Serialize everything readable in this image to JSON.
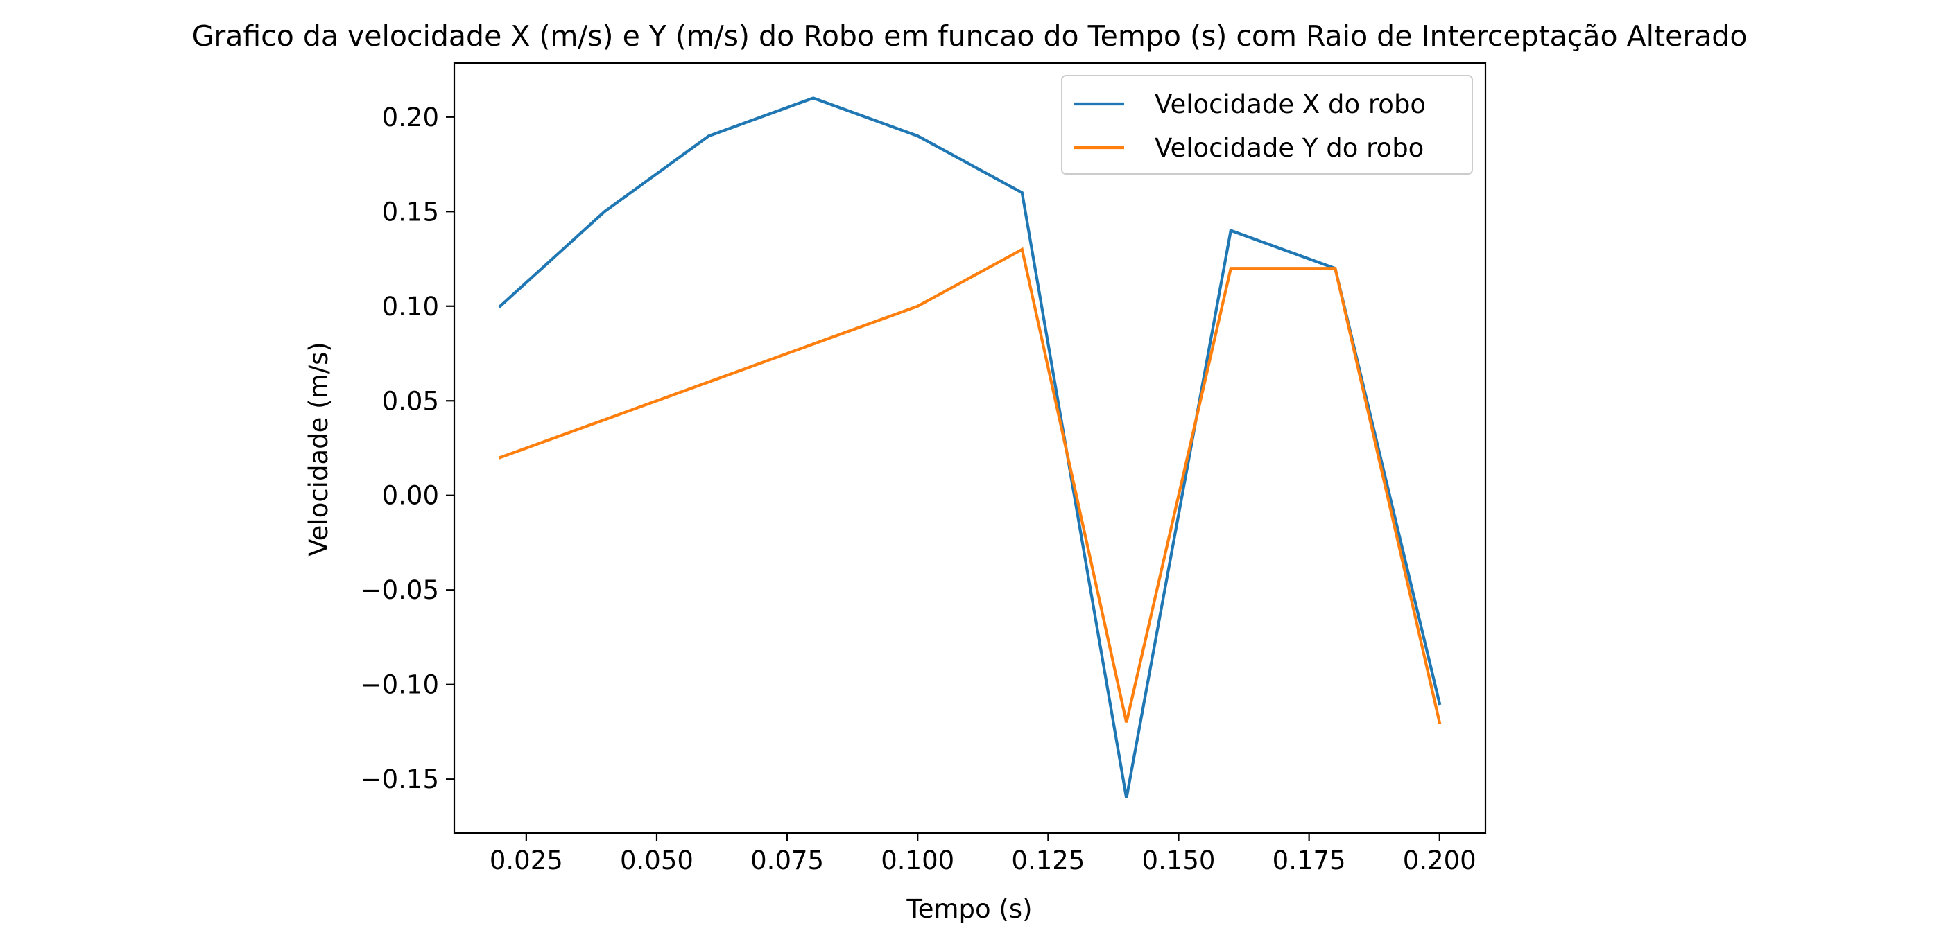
{
  "chart_data": {
    "type": "line",
    "title": "Grafico da velocidade X (m/s) e Y (m/s) do Robo em funcao do Tempo (s) com Raio de Interceptação Alterado",
    "xlabel": "Tempo (s)",
    "ylabel": "Velocidade (m/s)",
    "xlim": [
      0.0112,
      0.2088
    ],
    "ylim": [
      -0.1785,
      0.2285
    ],
    "xticks": [
      0.025,
      0.05,
      0.075,
      0.1,
      0.125,
      0.15,
      0.175,
      0.2
    ],
    "xtick_labels": [
      "0.025",
      "0.050",
      "0.075",
      "0.100",
      "0.125",
      "0.150",
      "0.175",
      "0.200"
    ],
    "yticks": [
      -0.15,
      -0.1,
      -0.05,
      0.0,
      0.05,
      0.1,
      0.15,
      0.2
    ],
    "ytick_labels": [
      "−0.15",
      "−0.10",
      "−0.05",
      "0.00",
      "0.05",
      "0.10",
      "0.15",
      "0.20"
    ],
    "grid": false,
    "legend_position": "top-right",
    "x": [
      0.02,
      0.04,
      0.06,
      0.08,
      0.1,
      0.12,
      0.14,
      0.16,
      0.18,
      0.2
    ],
    "series": [
      {
        "name": "Velocidade X do robo",
        "color": "#1f77b4",
        "values": [
          0.1,
          0.15,
          0.19,
          0.21,
          0.19,
          0.16,
          -0.16,
          0.14,
          0.12,
          -0.11
        ]
      },
      {
        "name": "Velocidade Y do robo",
        "color": "#ff7f0e",
        "values": [
          0.02,
          0.04,
          0.06,
          0.08,
          0.1,
          0.13,
          -0.12,
          0.12,
          0.12,
          -0.12
        ]
      }
    ]
  }
}
